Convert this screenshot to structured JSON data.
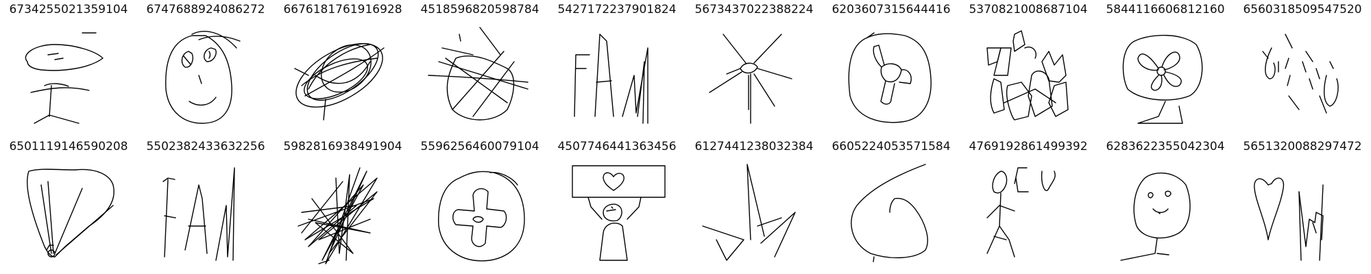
{
  "rows": [
    {
      "cells": [
        {
          "id": "6734255021359104"
        },
        {
          "id": "6747688924086272"
        },
        {
          "id": "6676181761916928"
        },
        {
          "id": "4518596820598784"
        },
        {
          "id": "5427172237901824"
        },
        {
          "id": "5673437022388224"
        },
        {
          "id": "6203607315644416"
        },
        {
          "id": "5370821008687104"
        },
        {
          "id": "5844116606812160"
        },
        {
          "id": "6560318509547520"
        }
      ]
    },
    {
      "cells": [
        {
          "id": "6501119146590208"
        },
        {
          "id": "5502382433632256"
        },
        {
          "id": "5982816938491904"
        },
        {
          "id": "5596256460079104"
        },
        {
          "id": "4507746441363456"
        },
        {
          "id": "6127441238032384"
        },
        {
          "id": "6605224053571584"
        },
        {
          "id": "4769192861499392"
        },
        {
          "id": "6283622355042304"
        },
        {
          "id": "5651320088297472"
        }
      ]
    }
  ]
}
